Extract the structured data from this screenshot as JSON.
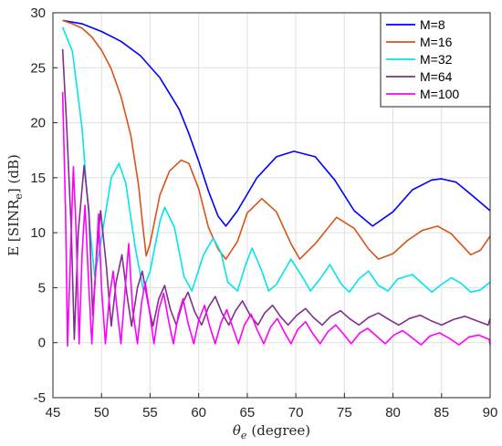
{
  "chart_data": {
    "type": "line",
    "xlabel_main": "θ",
    "xlabel_sub": "e",
    "xlabel_unit": "(degree)",
    "ylabel_pre": "E [SINR",
    "ylabel_sub": "e",
    "ylabel_post": "] (dB)",
    "xlim": [
      45,
      90
    ],
    "ylim": [
      -5,
      30
    ],
    "xticks": [
      45,
      50,
      55,
      60,
      65,
      70,
      75,
      80,
      85,
      90
    ],
    "yticks": [
      -5,
      0,
      5,
      10,
      15,
      20,
      25,
      30
    ],
    "grid": true,
    "legend_position": "top-right",
    "series": [
      {
        "name": "M=8",
        "color": "#0000ff",
        "x": [
          46,
          48,
          50,
          52,
          54,
          56,
          58,
          59,
          60,
          61,
          62,
          62.8,
          64,
          66,
          68,
          69.8,
          72,
          74,
          76,
          77.9,
          80,
          82,
          84,
          85,
          86.5,
          88,
          90
        ],
        "y": [
          29.3,
          29.0,
          28.3,
          27.4,
          26.1,
          24.1,
          21.2,
          19.0,
          16.5,
          13.8,
          11.5,
          10.6,
          12.0,
          15.0,
          16.9,
          17.4,
          16.9,
          14.8,
          12.0,
          10.6,
          11.9,
          13.9,
          14.8,
          14.9,
          14.6,
          13.5,
          12.0
        ]
      },
      {
        "name": "M=16",
        "color": "#d95319",
        "x": [
          46,
          47,
          48,
          49,
          50,
          51,
          52,
          53,
          53.8,
          54.3,
          54.6,
          55,
          56,
          57,
          58.2,
          59,
          60,
          61,
          62,
          62.8,
          64,
          65,
          66.5,
          68,
          69.5,
          70.4,
          72,
          74.2,
          76,
          77.5,
          78.5,
          80,
          81.5,
          83,
          84.6,
          86,
          88,
          89,
          90
        ],
        "y": [
          29.3,
          29.0,
          28.6,
          27.8,
          26.6,
          24.9,
          22.4,
          18.9,
          14.4,
          10.2,
          7.9,
          9.0,
          13.4,
          15.6,
          16.6,
          16.3,
          14.0,
          10.5,
          8.5,
          7.6,
          9.2,
          11.8,
          13.1,
          11.9,
          9.0,
          7.6,
          9.0,
          11.4,
          10.4,
          8.5,
          7.6,
          8.1,
          9.3,
          10.2,
          10.6,
          9.9,
          8.0,
          8.4,
          9.7
        ]
      },
      {
        "name": "M=32",
        "color": "#00e5ee",
        "x": [
          46,
          47,
          48,
          48.5,
          49,
          49.3,
          50,
          51,
          51.8,
          52.5,
          53.5,
          54.3,
          55,
          56,
          56.5,
          57.5,
          58.5,
          59.3,
          60.5,
          61.5,
          62.3,
          63,
          64,
          64.8,
          65.5,
          66.5,
          67.2,
          68,
          69.5,
          70.8,
          71.5,
          72.5,
          73.5,
          74.7,
          75.5,
          76.5,
          77.5,
          78.5,
          79.5,
          80.5,
          82,
          83,
          84,
          85,
          86,
          87,
          88,
          89,
          90
        ],
        "y": [
          28.7,
          26.5,
          19.5,
          13.5,
          8.6,
          6.0,
          9.5,
          15.0,
          16.3,
          14.5,
          8.5,
          4.8,
          6.5,
          11.0,
          12.3,
          10.5,
          6.0,
          4.7,
          8.0,
          9.5,
          8.2,
          5.5,
          4.7,
          7.0,
          8.6,
          6.5,
          4.7,
          5.3,
          7.6,
          5.8,
          4.7,
          5.8,
          7.1,
          5.3,
          4.6,
          5.8,
          6.5,
          5.2,
          4.7,
          5.8,
          6.2,
          5.4,
          4.6,
          5.3,
          5.9,
          5.4,
          4.6,
          4.8,
          5.5
        ]
      },
      {
        "name": "M=64",
        "color": "#7e2f8e",
        "x": [
          46,
          46.4,
          46.9,
          47.2,
          47.6,
          48.2,
          48.7,
          49.1,
          49.5,
          49.9,
          50.5,
          51.0,
          51.5,
          52.1,
          52.6,
          53.1,
          53.7,
          54.2,
          54.8,
          55.3,
          55.9,
          56.5,
          57.1,
          57.7,
          58.3,
          58.9,
          59.6,
          60.3,
          61.0,
          61.7,
          62.4,
          63.1,
          63.8,
          64.5,
          65.3,
          66.1,
          66.8,
          67.6,
          68.4,
          69.2,
          70.1,
          71.0,
          71.8,
          72.7,
          73.6,
          74.6,
          75.5,
          76.5,
          77.5,
          78.5,
          79.6,
          80.6,
          81.7,
          82.8,
          83.9,
          85.0,
          86.2,
          87.4,
          88.6,
          89.8,
          90
        ],
        "y": [
          26.7,
          20.0,
          10.0,
          0.3,
          10.0,
          16.1,
          12.0,
          2.5,
          8.0,
          12.0,
          7.0,
          1.5,
          5.5,
          8.0,
          4.5,
          1.5,
          5.0,
          6.5,
          3.5,
          1.5,
          4.0,
          5.2,
          3.0,
          1.6,
          3.5,
          4.6,
          2.8,
          1.6,
          3.2,
          4.2,
          2.7,
          1.6,
          2.9,
          3.8,
          2.5,
          1.6,
          2.7,
          3.4,
          2.4,
          1.6,
          2.5,
          3.1,
          2.3,
          1.6,
          2.4,
          2.9,
          2.2,
          1.6,
          2.3,
          2.7,
          2.1,
          1.6,
          2.2,
          2.5,
          2.0,
          1.6,
          2.1,
          2.4,
          2.0,
          1.6,
          2.2
        ]
      },
      {
        "name": "M=100",
        "color": "#ff00ff",
        "x": [
          46,
          46.3,
          46.5,
          46.8,
          47.1,
          47.4,
          47.7,
          48.0,
          48.3,
          48.7,
          49.0,
          49.3,
          49.7,
          50.0,
          50.4,
          50.8,
          51.2,
          51.6,
          52.0,
          52.4,
          52.8,
          53.2,
          53.7,
          54.1,
          54.5,
          55.0,
          55.4,
          55.9,
          56.4,
          56.9,
          57.4,
          57.9,
          58.4,
          58.9,
          59.5,
          60.0,
          60.6,
          61.1,
          61.7,
          62.3,
          62.9,
          63.5,
          64.1,
          64.7,
          65.4,
          66.0,
          66.7,
          67.4,
          68.1,
          68.8,
          69.5,
          70.2,
          71.0,
          71.7,
          72.5,
          73.3,
          74.1,
          74.9,
          75.7,
          76.6,
          77.4,
          78.3,
          79.2,
          80.1,
          81.0,
          81.9,
          82.9,
          83.8,
          84.8,
          85.8,
          86.8,
          87.8,
          88.8,
          89.9,
          90
        ],
        "y": [
          22.8,
          12.0,
          -0.3,
          8.0,
          16.0,
          10.0,
          -0.1,
          8.0,
          12.5,
          5.0,
          -0.1,
          5.0,
          11.7,
          5.0,
          -0.1,
          4.0,
          6.5,
          3.0,
          -0.1,
          4.5,
          9.0,
          3.0,
          -0.1,
          3.5,
          5.5,
          2.5,
          -0.1,
          3.0,
          4.5,
          2.0,
          -0.1,
          2.5,
          4.0,
          1.8,
          -0.1,
          2.0,
          3.4,
          1.6,
          -0.1,
          1.8,
          3.0,
          1.4,
          -0.1,
          1.6,
          2.6,
          1.2,
          -0.1,
          1.4,
          2.2,
          1.0,
          -0.1,
          1.2,
          1.9,
          0.9,
          -0.1,
          1.0,
          1.6,
          0.8,
          -0.1,
          0.9,
          1.3,
          0.6,
          -0.1,
          0.7,
          1.1,
          0.5,
          -0.2,
          0.6,
          0.9,
          0.4,
          -0.2,
          0.5,
          0.7,
          0.3,
          -0.2
        ]
      }
    ]
  }
}
